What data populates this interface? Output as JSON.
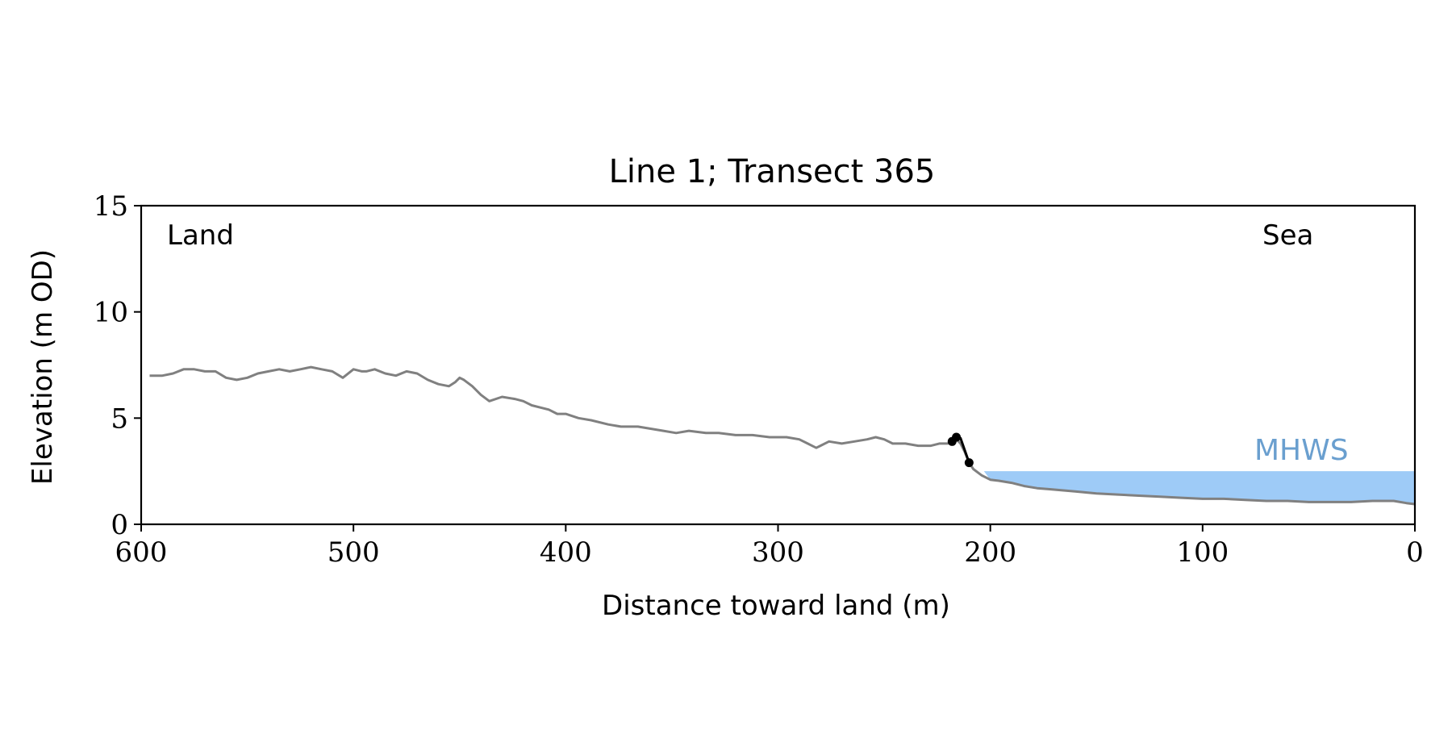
{
  "chart_data": {
    "type": "line",
    "title": "Line 1; Transect 365",
    "xlabel": "Distance toward land (m)",
    "ylabel": "Elevation (m OD)",
    "xlim": [
      600,
      0
    ],
    "ylim": [
      0,
      15
    ],
    "x_ticks": [
      "600",
      "500",
      "400",
      "300",
      "200",
      "100",
      "0"
    ],
    "y_ticks": [
      "0",
      "5",
      "10",
      "15"
    ],
    "annotations": {
      "land": "Land",
      "sea": "Sea",
      "mhws": "MHWS"
    },
    "grid": false,
    "colors": {
      "profile": "#808080",
      "cliff": "#000000",
      "water": "#9ecbf7",
      "mhws_text": "#6a9fcf"
    },
    "mhws": {
      "elevation": 2.5,
      "x_from": 203,
      "x_to": 0
    },
    "series": [
      {
        "role": "profile",
        "x": [
          596,
          590,
          585,
          580,
          575,
          570,
          565,
          560,
          555,
          550,
          545,
          540,
          535,
          530,
          525,
          520,
          515,
          510,
          505,
          500,
          496,
          494,
          490,
          485,
          480,
          475,
          470,
          465,
          460,
          455,
          452,
          450,
          448,
          444,
          440,
          436,
          430,
          424,
          420,
          416,
          412,
          408,
          404,
          400,
          394,
          388,
          380,
          374,
          366,
          360,
          354,
          348,
          342,
          334,
          328,
          320,
          312,
          304,
          296,
          290,
          286,
          284,
          282,
          280,
          276,
          270,
          264,
          258,
          254,
          250,
          246,
          240,
          234,
          228,
          224,
          220,
          218,
          216,
          214,
          212,
          210,
          208,
          204,
          200,
          196,
          190,
          184,
          178,
          172,
          166,
          160,
          150,
          140,
          130,
          120,
          110,
          100,
          90,
          80,
          70,
          60,
          50,
          40,
          30,
          20,
          10,
          4,
          0
        ],
        "y": [
          7.0,
          7.0,
          7.1,
          7.3,
          7.3,
          7.2,
          7.2,
          6.9,
          6.8,
          6.9,
          7.1,
          7.2,
          7.3,
          7.2,
          7.3,
          7.4,
          7.3,
          7.2,
          6.9,
          7.3,
          7.2,
          7.2,
          7.3,
          7.1,
          7.0,
          7.2,
          7.1,
          6.8,
          6.6,
          6.5,
          6.7,
          6.9,
          6.8,
          6.5,
          6.1,
          5.8,
          6.0,
          5.9,
          5.8,
          5.6,
          5.5,
          5.4,
          5.2,
          5.2,
          5.0,
          4.9,
          4.7,
          4.6,
          4.6,
          4.5,
          4.4,
          4.3,
          4.4,
          4.3,
          4.3,
          4.2,
          4.2,
          4.1,
          4.1,
          4.0,
          3.8,
          3.7,
          3.6,
          3.7,
          3.9,
          3.8,
          3.9,
          4.0,
          4.1,
          4.0,
          3.8,
          3.8,
          3.7,
          3.7,
          3.8,
          3.8,
          3.9,
          4.0,
          3.8,
          3.4,
          2.9,
          2.6,
          2.3,
          2.1,
          2.05,
          1.95,
          1.8,
          1.7,
          1.65,
          1.6,
          1.55,
          1.45,
          1.4,
          1.35,
          1.3,
          1.25,
          1.2,
          1.2,
          1.15,
          1.1,
          1.1,
          1.05,
          1.05,
          1.05,
          1.1,
          1.1,
          1.0,
          0.95
        ]
      },
      {
        "role": "cliff",
        "x": [
          218,
          216,
          214,
          210
        ],
        "y": [
          3.9,
          4.1,
          4.05,
          2.9
        ]
      }
    ],
    "markers": [
      {
        "x": 218,
        "y": 3.9
      },
      {
        "x": 216,
        "y": 4.1
      },
      {
        "x": 210,
        "y": 2.9
      }
    ]
  }
}
